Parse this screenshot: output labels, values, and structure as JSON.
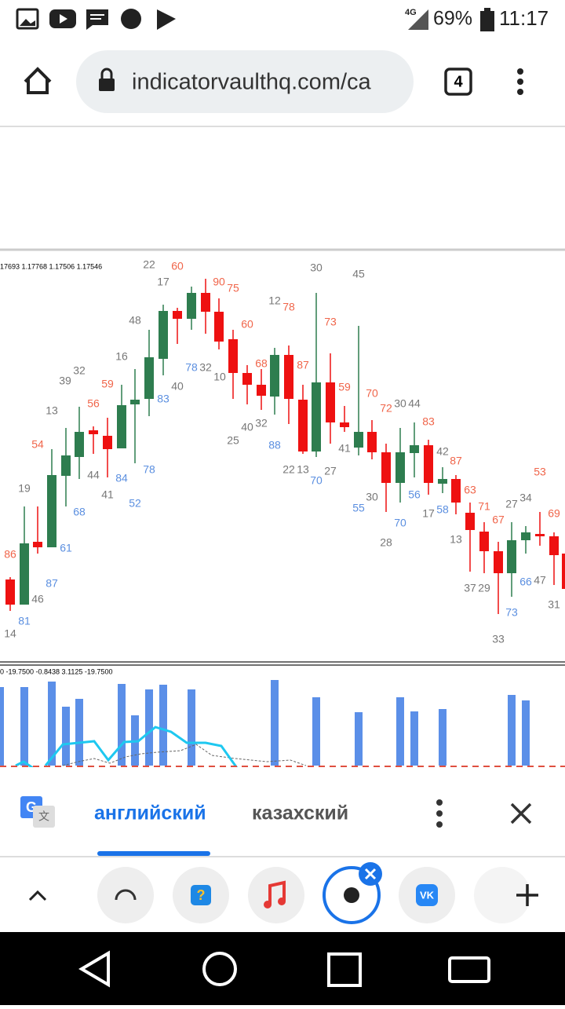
{
  "status_bar": {
    "network": "4G",
    "battery": "69%",
    "time": "11:17"
  },
  "browser": {
    "url": "indicatorvaulthq.com/ca",
    "tab_count": "4"
  },
  "chart": {
    "price_header": "17693 1.17768 1.17506 1.17546",
    "labels": [
      22,
      60,
      17,
      90,
      75,
      30,
      45,
      12,
      78,
      48,
      60,
      73,
      16,
      78,
      32,
      68,
      87,
      39,
      32,
      10,
      59,
      40,
      59,
      83,
      70,
      13,
      56,
      72,
      30,
      44,
      83,
      40,
      32,
      25,
      88,
      41,
      54,
      42,
      87,
      22,
      13,
      27,
      70,
      78,
      44,
      84,
      19,
      41,
      63,
      56,
      30,
      52,
      55,
      17,
      58,
      71,
      27,
      34,
      53,
      69,
      68,
      67,
      70,
      28,
      13,
      86,
      61,
      87,
      37,
      29,
      66,
      47,
      73,
      31,
      46,
      81,
      14,
      33
    ],
    "indicator_header": "0 -19.7500 -0.8438 3.1125 -19.7500"
  },
  "translate_bar": {
    "source_language": "английский",
    "target_language": "казахский"
  }
}
